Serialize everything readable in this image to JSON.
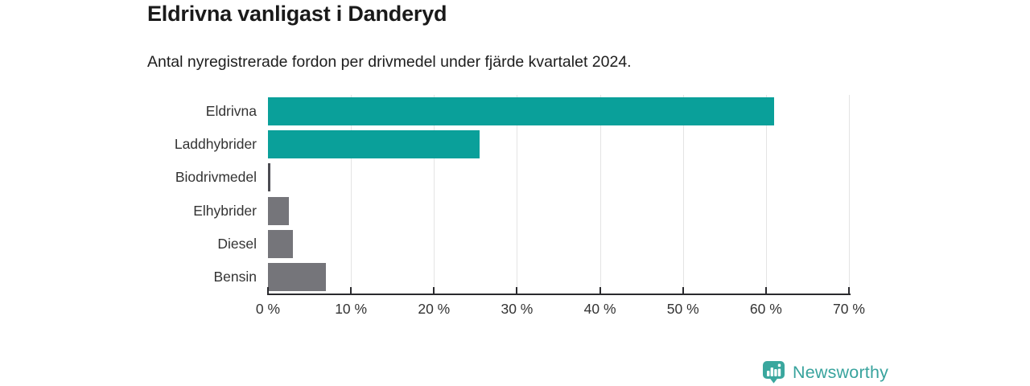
{
  "header": {
    "title": "Eldrivna vanligast i Danderyd",
    "subtitle": "Antal nyregistrerade fordon per drivmedel under fjärde kvartalet 2024."
  },
  "chart_data": {
    "type": "bar",
    "orientation": "horizontal",
    "title": "Eldrivna vanligast i Danderyd",
    "subtitle": "Antal nyregistrerade fordon per drivmedel under fjärde kvartalet 2024.",
    "categories": [
      "Eldrivna",
      "Laddhybrider",
      "Biodrivmedel",
      "Elhybrider",
      "Diesel",
      "Bensin"
    ],
    "values": [
      61,
      25.5,
      0.3,
      2.5,
      3,
      7
    ],
    "unit": "%",
    "bar_colors": [
      "#0aa09a",
      "#0aa09a",
      "#4c4c52",
      "#75757a",
      "#75757a",
      "#75757a"
    ],
    "xlabel": "",
    "ylabel": "",
    "xlim": [
      0,
      70
    ],
    "x_ticks": [
      0,
      10,
      20,
      30,
      40,
      50,
      60,
      70
    ],
    "x_tick_labels": [
      "0 %",
      "10 %",
      "20 %",
      "30 %",
      "40 %",
      "50 %",
      "60 %",
      "70 %"
    ],
    "grid": true,
    "legend_position": "none"
  },
  "colors": {
    "accent_teal": "#0aa09a",
    "bar_gray": "#75757a",
    "gridline": "#e4e4e4",
    "axis": "#2a2a2e",
    "text_dark": "#1a1a1a",
    "label_gray": "#333333",
    "logo_teal": "#38a39d"
  },
  "branding": {
    "logo_text": "Newsworthy",
    "logo_icon": "bar-chart-pin-icon"
  }
}
